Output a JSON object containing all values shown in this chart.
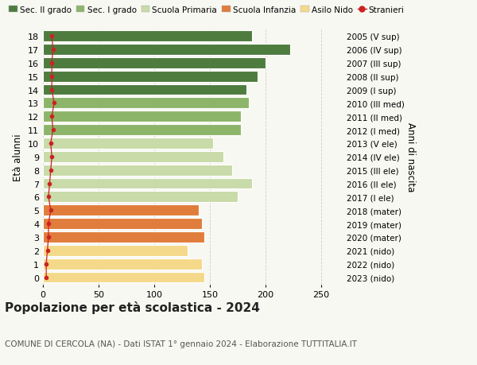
{
  "title": "Popolazione per età scolastica - 2024",
  "subtitle": "COMUNE DI CERCOLA (NA) - Dati ISTAT 1° gennaio 2024 - Elaborazione TUTTITALIA.IT",
  "ylabel_left": "Età alunni",
  "ylabel_right": "Anni di nascita",
  "xlim": [
    0,
    270
  ],
  "xticks": [
    0,
    50,
    100,
    150,
    200,
    250
  ],
  "ages": [
    0,
    1,
    2,
    3,
    4,
    5,
    6,
    7,
    8,
    9,
    10,
    11,
    12,
    13,
    14,
    15,
    16,
    17,
    18
  ],
  "values": [
    145,
    143,
    130,
    145,
    143,
    140,
    175,
    188,
    170,
    162,
    153,
    178,
    178,
    185,
    183,
    193,
    200,
    222,
    188
  ],
  "right_labels": [
    "2023 (nido)",
    "2022 (nido)",
    "2021 (nido)",
    "2020 (mater)",
    "2019 (mater)",
    "2018 (mater)",
    "2017 (I ele)",
    "2016 (II ele)",
    "2015 (III ele)",
    "2014 (IV ele)",
    "2013 (V ele)",
    "2012 (I med)",
    "2011 (II med)",
    "2010 (III med)",
    "2009 (I sup)",
    "2008 (II sup)",
    "2007 (III sup)",
    "2006 (IV sup)",
    "2005 (V sup)"
  ],
  "bar_colors": [
    "#f5d98b",
    "#f5d98b",
    "#f5d98b",
    "#e07d3c",
    "#e07d3c",
    "#e07d3c",
    "#c8dba8",
    "#c8dba8",
    "#c8dba8",
    "#c8dba8",
    "#c8dba8",
    "#8db56a",
    "#8db56a",
    "#8db56a",
    "#4e7c3f",
    "#4e7c3f",
    "#4e7c3f",
    "#4e7c3f",
    "#4e7c3f"
  ],
  "stranieri_values": [
    3,
    3,
    4,
    5,
    5,
    7,
    5,
    6,
    7,
    8,
    7,
    9,
    8,
    10,
    8,
    8,
    8,
    9,
    8
  ],
  "legend_labels": [
    "Sec. II grado",
    "Sec. I grado",
    "Scuola Primaria",
    "Scuola Infanzia",
    "Asilo Nido",
    "Stranieri"
  ],
  "legend_colors": [
    "#4e7c3f",
    "#8db56a",
    "#c8dba8",
    "#e07d3c",
    "#f5d98b",
    "#cc2222"
  ],
  "bg_color": "#f8f8f2",
  "bar_height": 0.82,
  "title_fontsize": 11,
  "subtitle_fontsize": 7.5,
  "tick_fontsize": 8,
  "label_fontsize": 8.5
}
